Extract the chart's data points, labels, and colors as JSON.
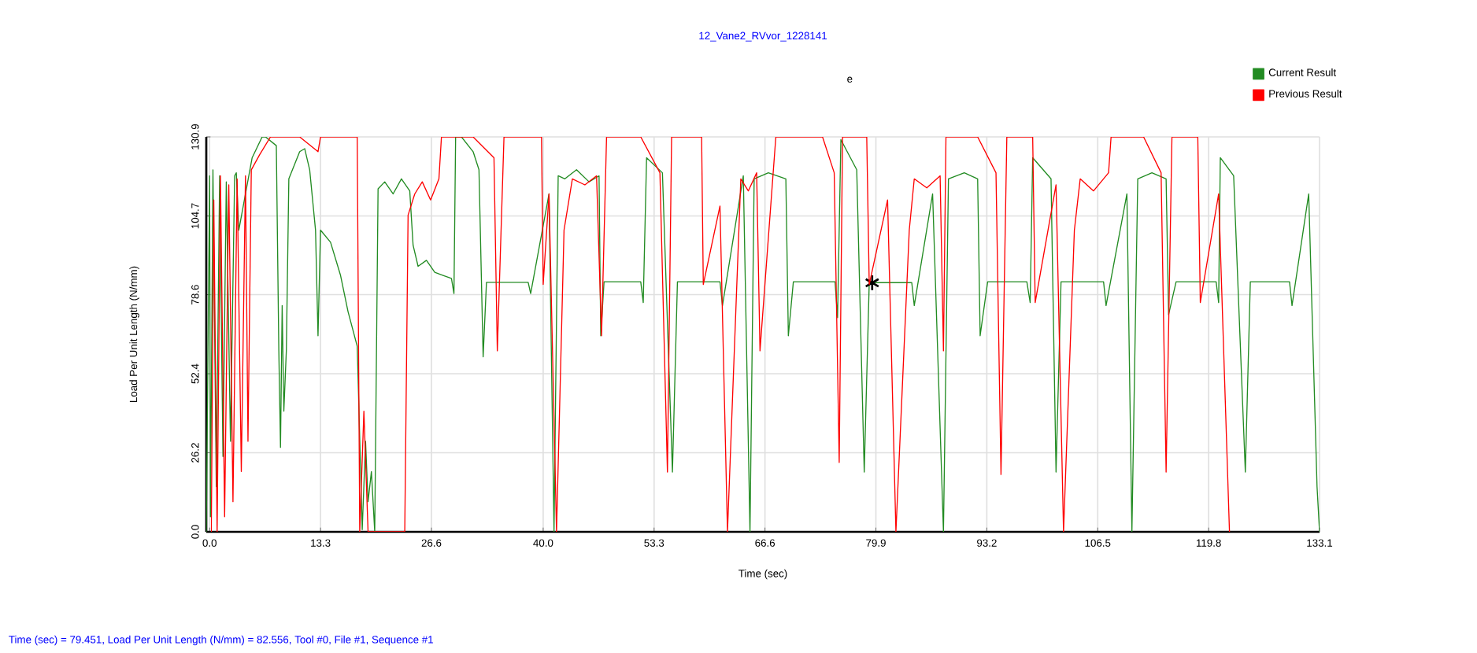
{
  "chart_data": {
    "type": "line",
    "title": "12_Vane2_RVvor_1228141",
    "subtitle": "e",
    "xlabel": "Time (sec)",
    "ylabel": "Load Per Unit Length (N/mm)",
    "annotations": [
      "Time (sec) = 79.451,  Load Per Unit Length (N/mm) = 82.556,  Tool #0,  File #1,  Sequence #1"
    ],
    "xlim": [
      -0.4,
      133.1
    ],
    "ylim": [
      0,
      130.9
    ],
    "xticks": [
      {
        "value": 0,
        "label": "0.0"
      },
      13.3,
      26.6,
      {
        "value": 40,
        "label": "40.0"
      },
      53.3,
      66.6,
      79.9,
      93.2,
      106.5,
      119.8,
      133.1
    ],
    "yticks": [
      {
        "value": 0,
        "label": "0.0"
      },
      26.2,
      52.4,
      78.6,
      104.7,
      130.9
    ],
    "grid": true,
    "legend": "top right",
    "series": [
      {
        "name": "Current Result",
        "color": "#228b22",
        "x": [
          -0.4,
          0,
          0.1,
          0.4,
          0.8,
          1.2,
          1.6,
          2.0,
          2.5,
          3.0,
          3.2,
          3.5,
          5.1,
          6.3,
          6.7,
          8.0,
          8.3,
          8.5,
          8.7,
          8.9,
          9.2,
          9.5,
          10.8,
          11.4,
          12.0,
          12.7,
          13.0,
          13.3,
          14.5,
          15.7,
          16.6,
          17.7,
          18.3,
          18.7,
          19.0,
          19.4,
          19.8,
          20.2,
          21,
          22,
          23,
          24,
          24.4,
          25,
          26,
          27,
          28,
          29,
          29.3,
          29.5,
          30.2,
          31.6,
          32.3,
          32.8,
          33.2,
          34,
          36,
          38.2,
          38.5,
          40.7,
          41.3,
          41.8,
          42.6,
          44,
          45.5,
          46.7,
          46.9,
          47.3,
          49.5,
          51.7,
          52.0,
          52.4,
          54.3,
          55.5,
          56.1,
          58.5,
          61.2,
          61.5,
          64,
          64.8,
          65.3,
          67,
          69.1,
          69.4,
          70,
          72.5,
          75,
          75.3,
          75.7,
          77.6,
          78.5,
          79.1,
          81.5,
          84.2,
          84.5,
          86.7,
          88,
          88.6,
          90.5,
          92.1,
          92.4,
          93.3,
          95.6,
          98.0,
          98.4,
          98.7,
          100.9,
          101.5,
          102.1,
          104.6,
          107.2,
          107.5,
          110.0,
          110.6,
          111.3,
          113,
          114.7,
          115.0,
          115.9,
          118.3,
          120.7,
          121.0,
          121.2,
          122.8,
          124.2,
          124.8,
          127,
          129.5,
          129.8,
          131.8,
          132.8,
          133.1
        ],
        "values": [
          0,
          118,
          5,
          120,
          15,
          118,
          25,
          116,
          30,
          118,
          119,
          100,
          124,
          130.9,
          130.9,
          128,
          60,
          28,
          75,
          40,
          60,
          117,
          126,
          127,
          120,
          100,
          65,
          100,
          96,
          85,
          73,
          61.5,
          0.7,
          30,
          10,
          20,
          0,
          113.7,
          116,
          112,
          117,
          113,
          95,
          88,
          90,
          86,
          85,
          84,
          79,
          130.9,
          130.9,
          126,
          120,
          58,
          82.7,
          82.7,
          82.7,
          82.7,
          79,
          112,
          0,
          118,
          117,
          120,
          116,
          118,
          65,
          82.9,
          82.9,
          82.9,
          76,
          124,
          119,
          19.8,
          82.9,
          82.9,
          82.9,
          75,
          118,
          0,
          117,
          119,
          117,
          65,
          82.9,
          82.9,
          82.9,
          71,
          130,
          120,
          19.8,
          82.6,
          82.6,
          82.6,
          75,
          112,
          0,
          117,
          119,
          117,
          65,
          82.9,
          82.9,
          82.9,
          76,
          124,
          117,
          19.8,
          82.9,
          82.9,
          82.9,
          75,
          112,
          0,
          117,
          119,
          117,
          72,
          82.9,
          82.9,
          82.9,
          76,
          124,
          118,
          19.8,
          82.9,
          82.9,
          82.9,
          75,
          112,
          15,
          0
        ]
      },
      {
        "type": "scatter",
        "marker": "cross",
        "color": "#000000",
        "x": [
          79.451
        ],
        "values": [
          82.556
        ]
      },
      {
        "name": "Previous Result",
        "color": "#ff0000",
        "x": [
          0.2,
          0.5,
          0.9,
          1.3,
          1.8,
          2.3,
          2.8,
          3.3,
          3.8,
          4.3,
          4.6,
          5.0,
          6.0,
          7.3,
          10.8,
          13.0,
          13.3,
          17.7,
          18.0,
          18.5,
          19.0,
          23.0,
          23.4,
          23.8,
          24.6,
          25.5,
          26.5,
          27.5,
          27.8,
          31.6,
          34.1,
          34.5,
          35.3,
          39.8,
          40.0,
          40.7,
          41.6,
          42.5,
          43.5,
          45,
          46.4,
          47.0,
          47.6,
          51.7,
          54.0,
          54.9,
          55.4,
          59.0,
          59.2,
          61.2,
          62.1,
          63.7,
          64.6,
          65.6,
          66.0,
          67.9,
          73.5,
          74.9,
          75.5,
          75.9,
          78.8,
          79.1,
          81.3,
          82.3,
          83.9,
          84.5,
          86,
          87.6,
          88.0,
          88.3,
          92.1,
          94.3,
          94.9,
          95.6,
          98.7,
          99.0,
          101.5,
          102.4,
          103.7,
          104.4,
          106,
          107.8,
          108.1,
          112,
          114.1,
          114.7,
          115.4,
          118.5,
          118.8,
          121.0,
          122.3
        ],
        "values": [
          0,
          110,
          0,
          118,
          5,
          115,
          10,
          117,
          20,
          118,
          30,
          120,
          125,
          130.9,
          130.9,
          126,
          130.9,
          130.9,
          0,
          40,
          0,
          0,
          0,
          105,
          112,
          116,
          110,
          117,
          130.9,
          130.9,
          124,
          60,
          130.9,
          130.9,
          82,
          112,
          0,
          100,
          117,
          115,
          118,
          65,
          130.9,
          130.9,
          119,
          19.8,
          130.9,
          130.9,
          82,
          108,
          0,
          117,
          113,
          119,
          60,
          130.9,
          130.9,
          119,
          23,
          130.9,
          130.9,
          82,
          110,
          0,
          100,
          117,
          114,
          118,
          60,
          130.9,
          130.9,
          119,
          19,
          130.9,
          130.9,
          76,
          115,
          0,
          100,
          117,
          113,
          119,
          130.9,
          130.9,
          119,
          19.8,
          130.9,
          130.9,
          76,
          112,
          0
        ]
      }
    ]
  }
}
